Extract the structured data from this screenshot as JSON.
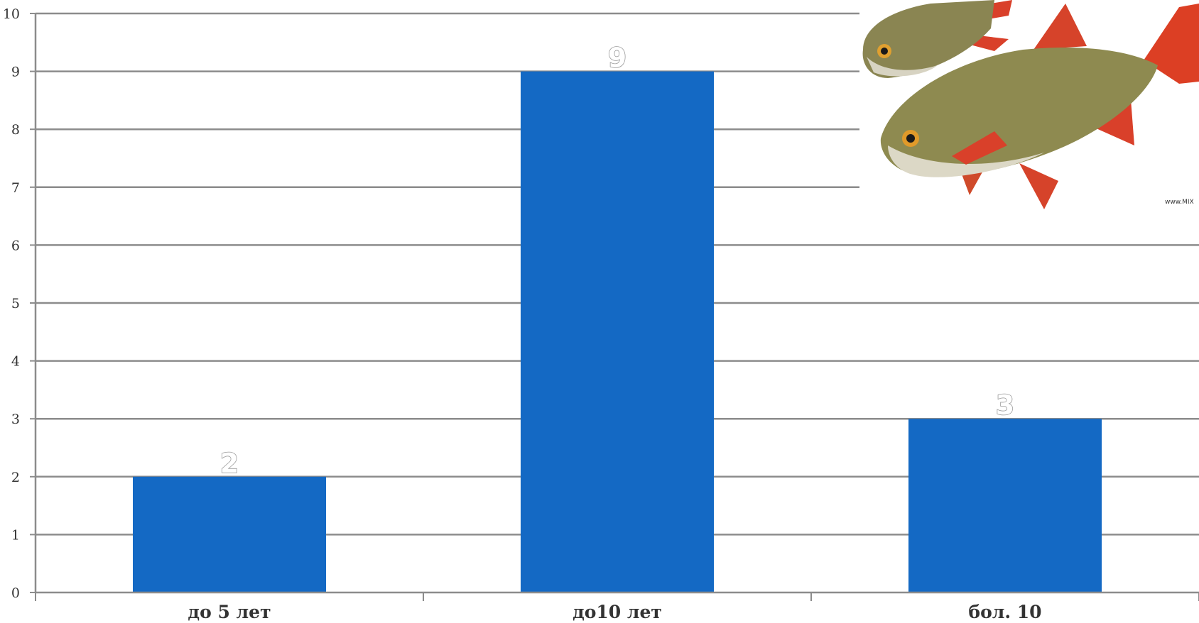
{
  "chart_data": {
    "type": "bar",
    "categories": [
      "до 5 лет",
      "до10 лет",
      "бол. 10"
    ],
    "values": [
      2,
      9,
      3
    ],
    "data_labels": [
      "2",
      "9",
      "3"
    ],
    "y_ticks": [
      "0",
      "1",
      "2",
      "3",
      "4",
      "5",
      "6",
      "7",
      "8",
      "9",
      "10"
    ],
    "ylim": [
      0,
      10
    ],
    "grid": true,
    "legend": "none",
    "bar_color": "#1469c4",
    "title": "",
    "xlabel": "",
    "ylabel": ""
  },
  "decoration": {
    "image_icon": "two-rudd-fish",
    "watermark_text": "www.MIX"
  }
}
